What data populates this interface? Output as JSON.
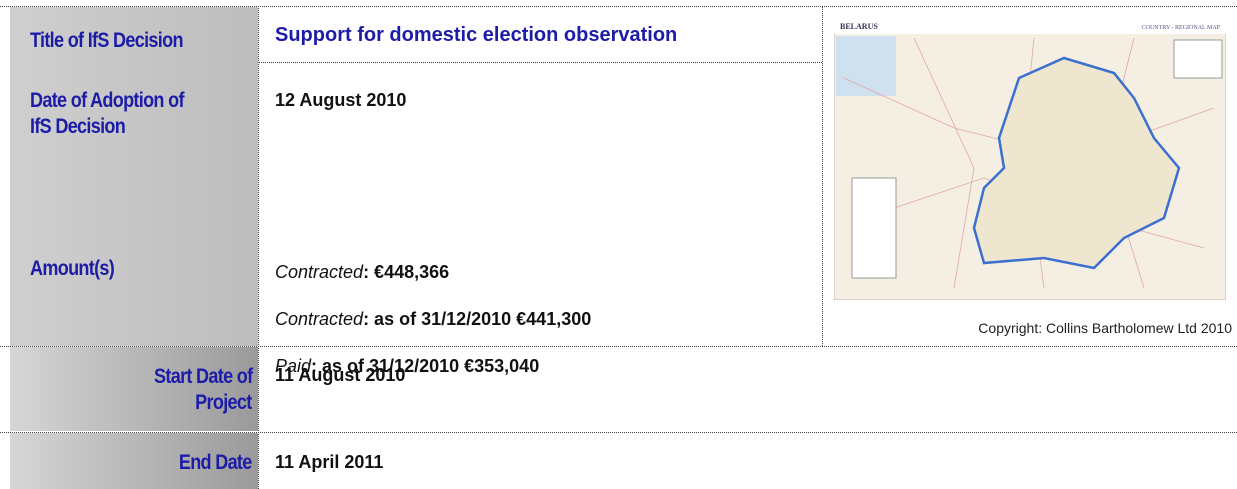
{
  "title_row": {
    "label": "Title of IfS Decision",
    "value": "Support for domestic election observation"
  },
  "adoption": {
    "label": [
      "Date of Adoption of",
      "IfS Decision"
    ],
    "value": "12 August 2010"
  },
  "amounts": {
    "label": "Amount(s)",
    "items": [
      {
        "term": "Contracted",
        "text": ": €448,366"
      },
      {
        "term": "Contracted",
        "text": ": as of 31/12/2010 €441,300"
      },
      {
        "term": "Paid",
        "text": ": as of 31/12/2010 €353,040"
      }
    ]
  },
  "map": {
    "title": "BELARUS",
    "subtitle": "COUNTRY - REGIONAL MAP",
    "copyright": "Copyright: Collins Bartholomew Ltd 2010"
  },
  "start": {
    "label": [
      "Start Date of",
      "Project"
    ],
    "value": "11 August 2010"
  },
  "end": {
    "label": "End Date",
    "value": "11 April 2011"
  }
}
